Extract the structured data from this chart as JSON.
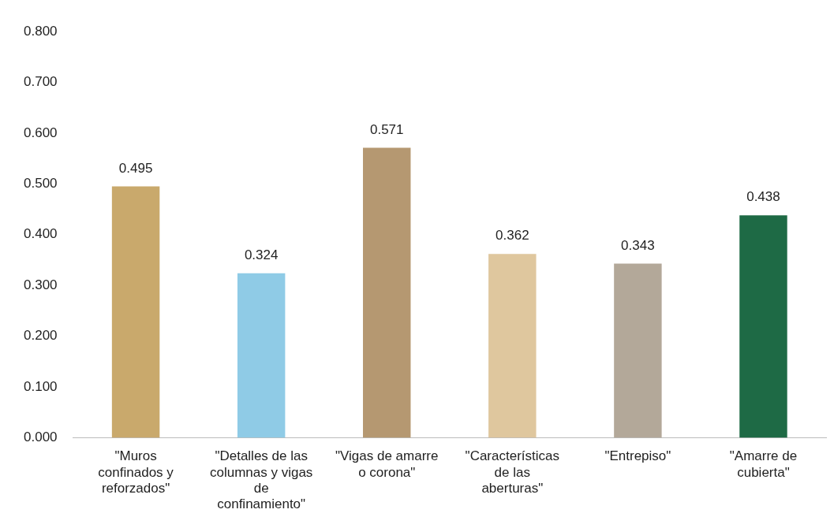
{
  "chart_data": {
    "type": "bar",
    "categories": [
      "\"Muros confinados y reforzados\"",
      "\"Detalles de las columnas y vigas de confinamiento\"",
      "\"Vigas de amarre o corona\"",
      "\"Características de las aberturas\"",
      "\"Entrepiso\"",
      "\"Amarre de cubierta\""
    ],
    "values": [
      0.495,
      0.324,
      0.571,
      0.362,
      0.343,
      0.438
    ],
    "colors": [
      "#c9a96c",
      "#8fcbe6",
      "#b59871",
      "#dfc79e",
      "#b3a899",
      "#1e6a45"
    ],
    "ylim": [
      0,
      0.8
    ],
    "yticks": [
      {
        "value": 0,
        "label": "0.000"
      },
      {
        "value": 0.1,
        "label": "0.100"
      },
      {
        "value": 0.2,
        "label": "0.200"
      },
      {
        "value": 0.3,
        "label": "0.300"
      },
      {
        "value": 0.4,
        "label": "0.400"
      },
      {
        "value": 0.5,
        "label": "0.500"
      },
      {
        "value": 0.6,
        "label": "0.600"
      },
      {
        "value": 0.7,
        "label": "0.700"
      },
      {
        "value": 0.8,
        "label": "0.800"
      }
    ],
    "grid": false,
    "legend": false,
    "data_labels": true
  }
}
